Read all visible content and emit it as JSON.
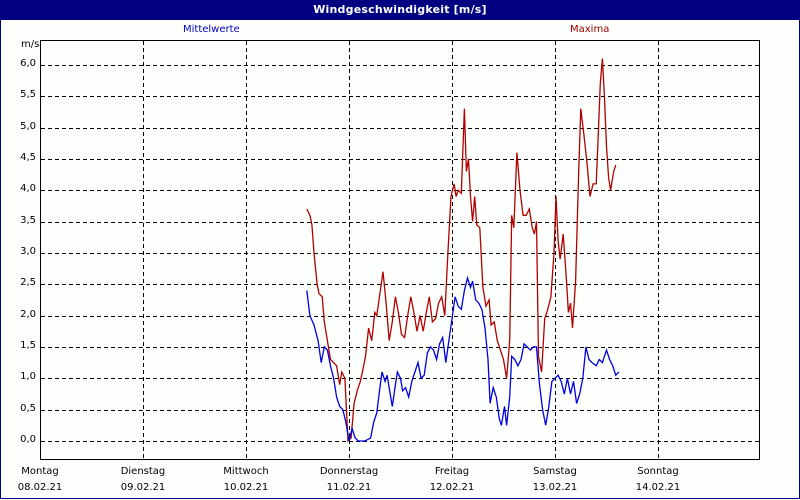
{
  "window": {
    "title": "Windgeschwindigkeit [m/s]"
  },
  "legend": {
    "mean_label": "Mittelwerte",
    "max_label": "Maxima",
    "mean_color": "#0000e0",
    "max_color": "#b00000"
  },
  "axis": {
    "unit": "m/s",
    "y_ticks": [
      "6,0",
      "5,5",
      "5,0",
      "4,5",
      "4,0",
      "3,5",
      "3,0",
      "2,5",
      "2,0",
      "1,5",
      "1,0",
      "0,5",
      "0,0"
    ],
    "days": [
      {
        "day": "Montag",
        "date": "08.02.21"
      },
      {
        "day": "Dienstag",
        "date": "09.02.21"
      },
      {
        "day": "Mittwoch",
        "date": "10.02.21"
      },
      {
        "day": "Donnerstag",
        "date": "11.02.21"
      },
      {
        "day": "Freitag",
        "date": "12.02.21"
      },
      {
        "day": "Samstag",
        "date": "13.02.21"
      },
      {
        "day": "Sonntag",
        "date": "14.02.21"
      }
    ]
  },
  "chart_data": {
    "type": "line",
    "title": "Windgeschwindigkeit [m/s]",
    "xlabel": "",
    "ylabel": "m/s",
    "ylim": [
      -0.3,
      6.4
    ],
    "grid": true,
    "legend_position": "top",
    "categories": [
      "Montag 08.02.21",
      "Dienstag 09.02.21",
      "Mittwoch 10.02.21",
      "Donnerstag 11.02.21",
      "Freitag 12.02.21",
      "Samstag 13.02.21",
      "Sonntag 14.02.21"
    ],
    "x_unit": "day index from Monday 00:00 (fractional days)",
    "series": [
      {
        "name": "Mittelwerte",
        "color": "#0000e0",
        "points": [
          [
            2.59,
            2.4
          ],
          [
            2.62,
            2.0
          ],
          [
            2.66,
            1.85
          ],
          [
            2.7,
            1.6
          ],
          [
            2.73,
            1.25
          ],
          [
            2.76,
            1.5
          ],
          [
            2.79,
            1.45
          ],
          [
            2.82,
            1.2
          ],
          [
            2.85,
            1.0
          ],
          [
            2.88,
            0.7
          ],
          [
            2.91,
            0.55
          ],
          [
            2.94,
            0.5
          ],
          [
            2.97,
            0.3
          ],
          [
            3.0,
            0.0
          ],
          [
            3.03,
            0.2
          ],
          [
            3.06,
            0.05
          ],
          [
            3.09,
            0.0
          ],
          [
            3.12,
            0.0
          ],
          [
            3.15,
            0.0
          ],
          [
            3.18,
            0.02
          ],
          [
            3.21,
            0.05
          ],
          [
            3.24,
            0.3
          ],
          [
            3.27,
            0.45
          ],
          [
            3.3,
            0.85
          ],
          [
            3.32,
            1.1
          ],
          [
            3.35,
            0.95
          ],
          [
            3.37,
            1.05
          ],
          [
            3.4,
            0.75
          ],
          [
            3.42,
            0.55
          ],
          [
            3.45,
            0.9
          ],
          [
            3.47,
            1.1
          ],
          [
            3.5,
            1.0
          ],
          [
            3.52,
            0.8
          ],
          [
            3.55,
            0.85
          ],
          [
            3.58,
            0.7
          ],
          [
            3.61,
            0.95
          ],
          [
            3.64,
            1.1
          ],
          [
            3.67,
            1.25
          ],
          [
            3.7,
            1.0
          ],
          [
            3.73,
            1.05
          ],
          [
            3.76,
            1.4
          ],
          [
            3.79,
            1.5
          ],
          [
            3.82,
            1.45
          ],
          [
            3.85,
            1.3
          ],
          [
            3.88,
            1.55
          ],
          [
            3.91,
            1.65
          ],
          [
            3.94,
            1.25
          ],
          [
            3.97,
            1.6
          ],
          [
            4.0,
            1.95
          ],
          [
            4.03,
            2.3
          ],
          [
            4.06,
            2.15
          ],
          [
            4.09,
            2.1
          ],
          [
            4.12,
            2.4
          ],
          [
            4.15,
            2.6
          ],
          [
            4.18,
            2.45
          ],
          [
            4.2,
            2.55
          ],
          [
            4.23,
            2.25
          ],
          [
            4.26,
            2.2
          ],
          [
            4.29,
            2.1
          ],
          [
            4.32,
            1.8
          ],
          [
            4.35,
            1.3
          ],
          [
            4.37,
            0.6
          ],
          [
            4.4,
            0.85
          ],
          [
            4.43,
            0.7
          ],
          [
            4.46,
            0.35
          ],
          [
            4.48,
            0.25
          ],
          [
            4.51,
            0.55
          ],
          [
            4.53,
            0.25
          ],
          [
            4.56,
            0.7
          ],
          [
            4.58,
            1.35
          ],
          [
            4.61,
            1.3
          ],
          [
            4.64,
            1.2
          ],
          [
            4.67,
            1.3
          ],
          [
            4.7,
            1.55
          ],
          [
            4.73,
            1.5
          ],
          [
            4.76,
            1.45
          ],
          [
            4.79,
            1.5
          ],
          [
            4.82,
            1.5
          ],
          [
            4.85,
            0.9
          ],
          [
            4.88,
            0.5
          ],
          [
            4.91,
            0.25
          ],
          [
            4.94,
            0.55
          ],
          [
            4.97,
            0.95
          ],
          [
            5.0,
            1.0
          ],
          [
            5.03,
            1.05
          ],
          [
            5.06,
            0.95
          ],
          [
            5.09,
            0.75
          ],
          [
            5.12,
            1.0
          ],
          [
            5.15,
            0.75
          ],
          [
            5.18,
            0.95
          ],
          [
            5.21,
            0.6
          ],
          [
            5.24,
            0.75
          ],
          [
            5.27,
            1.0
          ],
          [
            5.3,
            1.5
          ],
          [
            5.33,
            1.3
          ],
          [
            5.36,
            1.25
          ],
          [
            5.4,
            1.2
          ],
          [
            5.43,
            1.3
          ],
          [
            5.46,
            1.25
          ],
          [
            5.5,
            1.45
          ],
          [
            5.53,
            1.3
          ],
          [
            5.56,
            1.2
          ],
          [
            5.59,
            1.05
          ],
          [
            5.62,
            1.1
          ]
        ]
      },
      {
        "name": "Maxima",
        "color": "#b00000",
        "points": [
          [
            2.59,
            3.7
          ],
          [
            2.62,
            3.6
          ],
          [
            2.64,
            3.45
          ],
          [
            2.66,
            3.0
          ],
          [
            2.69,
            2.5
          ],
          [
            2.71,
            2.35
          ],
          [
            2.74,
            2.3
          ],
          [
            2.76,
            1.9
          ],
          [
            2.79,
            1.6
          ],
          [
            2.82,
            1.3
          ],
          [
            2.85,
            1.25
          ],
          [
            2.88,
            1.2
          ],
          [
            2.91,
            0.9
          ],
          [
            2.93,
            1.1
          ],
          [
            2.96,
            1.0
          ],
          [
            2.99,
            0.0
          ],
          [
            3.02,
            0.05
          ],
          [
            3.05,
            0.6
          ],
          [
            3.08,
            0.8
          ],
          [
            3.11,
            0.95
          ],
          [
            3.13,
            1.1
          ],
          [
            3.16,
            1.35
          ],
          [
            3.19,
            1.8
          ],
          [
            3.22,
            1.6
          ],
          [
            3.25,
            2.05
          ],
          [
            3.27,
            2.0
          ],
          [
            3.3,
            2.35
          ],
          [
            3.33,
            2.7
          ],
          [
            3.36,
            2.2
          ],
          [
            3.39,
            1.6
          ],
          [
            3.42,
            1.9
          ],
          [
            3.45,
            2.3
          ],
          [
            3.48,
            2.05
          ],
          [
            3.51,
            1.7
          ],
          [
            3.54,
            1.65
          ],
          [
            3.57,
            2.0
          ],
          [
            3.6,
            2.3
          ],
          [
            3.63,
            2.05
          ],
          [
            3.66,
            1.75
          ],
          [
            3.69,
            2.0
          ],
          [
            3.72,
            1.75
          ],
          [
            3.75,
            2.05
          ],
          [
            3.78,
            2.3
          ],
          [
            3.81,
            1.9
          ],
          [
            3.84,
            1.95
          ],
          [
            3.87,
            2.2
          ],
          [
            3.9,
            2.3
          ],
          [
            3.93,
            2.0
          ],
          [
            3.96,
            3.0
          ],
          [
            3.99,
            3.9
          ],
          [
            4.02,
            4.1
          ],
          [
            4.04,
            3.9
          ],
          [
            4.06,
            4.0
          ],
          [
            4.09,
            3.95
          ],
          [
            4.12,
            5.3
          ],
          [
            4.14,
            4.3
          ],
          [
            4.16,
            4.5
          ],
          [
            4.18,
            3.9
          ],
          [
            4.2,
            3.5
          ],
          [
            4.22,
            3.9
          ],
          [
            4.24,
            3.45
          ],
          [
            4.27,
            3.4
          ],
          [
            4.3,
            2.45
          ],
          [
            4.33,
            2.15
          ],
          [
            4.36,
            2.25
          ],
          [
            4.38,
            1.85
          ],
          [
            4.41,
            1.9
          ],
          [
            4.44,
            1.6
          ],
          [
            4.47,
            1.45
          ],
          [
            4.5,
            1.3
          ],
          [
            4.53,
            1.0
          ],
          [
            4.56,
            1.6
          ],
          [
            4.58,
            3.6
          ],
          [
            4.6,
            3.4
          ],
          [
            4.63,
            4.6
          ],
          [
            4.66,
            4.0
          ],
          [
            4.69,
            3.6
          ],
          [
            4.72,
            3.6
          ],
          [
            4.75,
            3.7
          ],
          [
            4.78,
            3.4
          ],
          [
            4.8,
            3.3
          ],
          [
            4.82,
            3.5
          ],
          [
            4.84,
            1.35
          ],
          [
            4.87,
            1.1
          ],
          [
            4.9,
            1.95
          ],
          [
            4.93,
            2.1
          ],
          [
            4.96,
            2.3
          ],
          [
            4.99,
            3.0
          ],
          [
            5.01,
            3.9
          ],
          [
            5.03,
            3.2
          ],
          [
            5.05,
            2.9
          ],
          [
            5.08,
            3.3
          ],
          [
            5.11,
            2.6
          ],
          [
            5.13,
            2.05
          ],
          [
            5.15,
            2.2
          ],
          [
            5.17,
            1.8
          ],
          [
            5.2,
            2.55
          ],
          [
            5.23,
            4.3
          ],
          [
            5.25,
            5.3
          ],
          [
            5.28,
            4.9
          ],
          [
            5.31,
            4.45
          ],
          [
            5.34,
            3.9
          ],
          [
            5.37,
            4.1
          ],
          [
            5.4,
            4.1
          ],
          [
            5.42,
            4.9
          ],
          [
            5.44,
            5.7
          ],
          [
            5.46,
            6.1
          ],
          [
            5.48,
            5.5
          ],
          [
            5.5,
            4.7
          ],
          [
            5.52,
            4.2
          ],
          [
            5.54,
            4.0
          ],
          [
            5.57,
            4.3
          ],
          [
            5.59,
            4.4
          ]
        ]
      }
    ]
  }
}
